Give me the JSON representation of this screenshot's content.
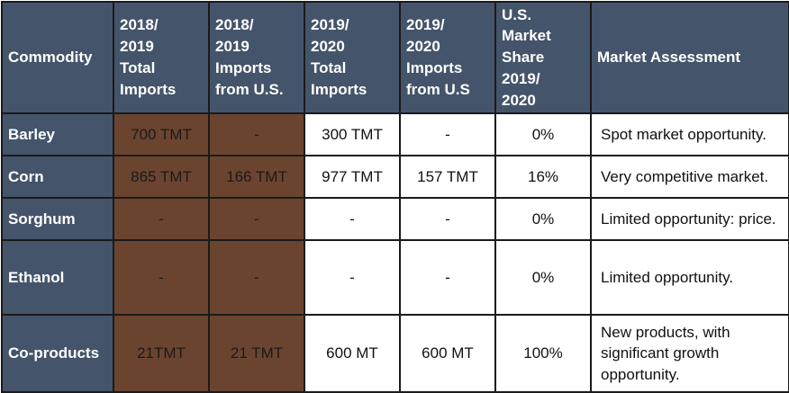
{
  "headers": [
    "Commodity",
    "2018/\n2019\nTotal\nImports",
    "2018/\n2019\nImports\nfrom U.S.",
    "2019/\n2020\nTotal\nImports",
    "2019/\n2020\nImports\nfrom U.S",
    "U.S.\nMarket\nShare\n2019/\n2020",
    "Market Assessment"
  ],
  "rows": [
    {
      "commodity": "Barley",
      "total_1819": "700 TMT",
      "us_1819": "-",
      "total_1920": "300 TMT",
      "us_1920": "-",
      "share": "0%",
      "assessment": "Spot market opportunity."
    },
    {
      "commodity": "Corn",
      "total_1819": "865 TMT",
      "us_1819": "166 TMT",
      "total_1920": "977 TMT",
      "us_1920": "157 TMT",
      "share": "16%",
      "assessment": "Very competitive market."
    },
    {
      "commodity": "Sorghum",
      "total_1819": "-",
      "us_1819": "-",
      "total_1920": "-",
      "us_1920": "-",
      "share": "0%",
      "assessment": "Limited opportunity: price."
    },
    {
      "commodity": "Ethanol",
      "total_1819": "-",
      "us_1819": "-",
      "total_1920": "-",
      "us_1920": "-",
      "share": "0%",
      "assessment": "Limited opportunity."
    },
    {
      "commodity": "Co-products",
      "total_1819": "21TMT",
      "us_1819": "21 TMT",
      "total_1920": "600 MT",
      "us_1920": "600 MT",
      "share": "100%",
      "assessment": "New products, with significant growth opportunity."
    }
  ],
  "colors": {
    "header_bg": "#44546a",
    "highlight_bg": "#6b4430"
  }
}
